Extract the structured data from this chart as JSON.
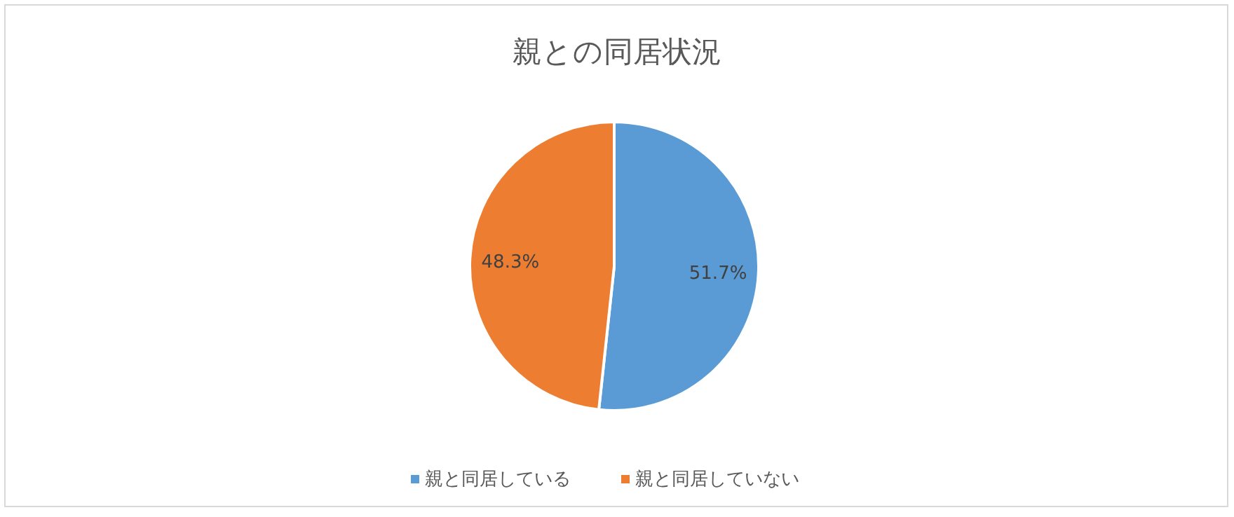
{
  "chart_data": {
    "type": "pie",
    "title": "親との同居状況",
    "categories": [
      "親と同居している",
      "親と同居していない"
    ],
    "values": [
      51.7,
      48.3
    ],
    "colors": [
      "#5b9bd5",
      "#ed7d31"
    ],
    "value_labels": [
      "51.7%",
      "48.3%"
    ],
    "legend": "bottom"
  }
}
